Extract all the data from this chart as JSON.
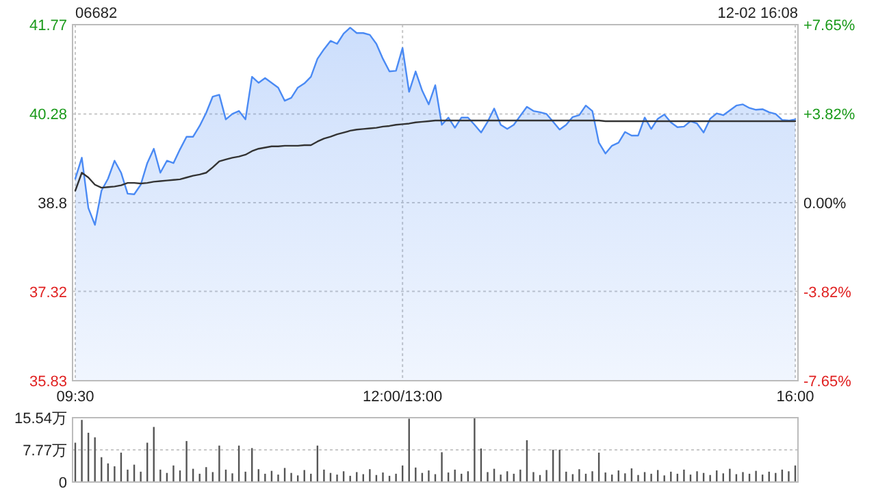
{
  "chart_data": [
    {
      "type": "line",
      "title": "06682",
      "annotations": [
        "12-02 16:08"
      ],
      "grid": true,
      "categories": [
        "09:30",
        null,
        null,
        null,
        null,
        null,
        null,
        null,
        null,
        null,
        null,
        null,
        null,
        null,
        null,
        null,
        null,
        null,
        null,
        null,
        null,
        null,
        null,
        null,
        null,
        null,
        null,
        null,
        null,
        null,
        null,
        null,
        null,
        null,
        null,
        null,
        null,
        null,
        null,
        null,
        null,
        null,
        null,
        null,
        null,
        null,
        null,
        null,
        null,
        null,
        "12:00/13:00",
        null,
        null,
        null,
        null,
        null,
        null,
        null,
        null,
        null,
        null,
        null,
        null,
        null,
        null,
        null,
        null,
        null,
        null,
        null,
        null,
        null,
        null,
        null,
        null,
        null,
        null,
        null,
        null,
        null,
        null,
        null,
        null,
        null,
        null,
        null,
        null,
        null,
        null,
        null,
        null,
        null,
        null,
        null,
        null,
        null,
        null,
        null,
        null,
        null,
        null,
        null,
        null,
        null,
        null,
        null,
        null,
        null,
        null,
        null,
        "16:00"
      ],
      "ylim": [
        35.83,
        41.77
      ],
      "yticks": [
        35.83,
        37.32,
        38.8,
        40.28,
        41.77
      ],
      "y2lim": [
        -7.65,
        7.65
      ],
      "y2ticks": [
        {
          "value": -7.65,
          "label": "-7.65%"
        },
        {
          "value": -3.82,
          "label": "-3.82%"
        },
        {
          "value": 0,
          "label": "0.00%"
        },
        {
          "value": 3.82,
          "label": "+3.82%"
        },
        {
          "value": 7.65,
          "label": "+7.65%"
        }
      ],
      "series": [
        {
          "type": "area",
          "color": "#4a8af4",
          "values": [
            39.2,
            39.55,
            38.71,
            38.43,
            39.0,
            39.2,
            39.5,
            39.3,
            38.95,
            38.94,
            39.1,
            39.46,
            39.7,
            39.3,
            39.5,
            39.46,
            39.69,
            39.9,
            39.9,
            40.08,
            40.3,
            40.57,
            40.6,
            40.19,
            40.28,
            40.33,
            40.19,
            40.9,
            40.8,
            40.88,
            40.8,
            40.72,
            40.5,
            40.55,
            40.72,
            40.79,
            40.9,
            41.2,
            41.36,
            41.5,
            41.45,
            41.62,
            41.72,
            41.63,
            41.63,
            41.6,
            41.45,
            41.2,
            40.99,
            41.0,
            41.38,
            40.65,
            40.99,
            40.67,
            40.44,
            40.76,
            40.1,
            40.22,
            40.05,
            40.22,
            40.22,
            40.1,
            39.97,
            40.15,
            40.37,
            40.1,
            40.03,
            40.1,
            40.25,
            40.4,
            40.33,
            40.31,
            40.28,
            40.15,
            40.02,
            40.1,
            40.23,
            40.26,
            40.42,
            40.33,
            39.8,
            39.62,
            39.75,
            39.8,
            39.98,
            39.92,
            39.92,
            40.22,
            40.03,
            40.2,
            40.27,
            40.14,
            40.06,
            40.07,
            40.16,
            40.12,
            39.97,
            40.2,
            40.29,
            40.26,
            40.34,
            40.42,
            40.44,
            40.38,
            40.35,
            40.36,
            40.31,
            40.28,
            40.18,
            40.17,
            40.19
          ]
        },
        {
          "type": "line",
          "color": "#333333",
          "values": [
            39.0,
            39.3,
            39.22,
            39.1,
            39.05,
            39.06,
            39.07,
            39.09,
            39.13,
            39.13,
            39.12,
            39.13,
            39.15,
            39.16,
            39.17,
            39.18,
            39.19,
            39.22,
            39.25,
            39.27,
            39.3,
            39.39,
            39.49,
            39.52,
            39.55,
            39.57,
            39.6,
            39.66,
            39.7,
            39.72,
            39.74,
            39.74,
            39.75,
            39.75,
            39.75,
            39.76,
            39.76,
            39.82,
            39.87,
            39.9,
            39.94,
            39.97,
            40.0,
            40.02,
            40.03,
            40.04,
            40.05,
            40.07,
            40.08,
            40.1,
            40.11,
            40.12,
            40.14,
            40.15,
            40.16,
            40.17,
            40.17,
            40.17,
            40.17,
            40.17,
            40.17,
            40.17,
            40.17,
            40.17,
            40.17,
            40.17,
            40.17,
            40.17,
            40.17,
            40.17,
            40.17,
            40.17,
            40.17,
            40.17,
            40.17,
            40.17,
            40.17,
            40.17,
            40.17,
            40.17,
            40.17,
            40.16,
            40.16,
            40.16,
            40.16,
            40.16,
            40.16,
            40.16,
            40.16,
            40.16,
            40.16,
            40.16,
            40.16,
            40.16,
            40.16,
            40.16,
            40.16,
            40.16,
            40.16,
            40.16,
            40.16,
            40.16,
            40.16,
            40.16,
            40.16,
            40.16,
            40.16,
            40.16,
            40.16,
            40.16,
            40.16
          ]
        }
      ]
    },
    {
      "type": "bar",
      "grid": "y",
      "tick_labels": "y",
      "categories": [
        null,
        null,
        null,
        null,
        null,
        null,
        null,
        null,
        null,
        null,
        null,
        null,
        null,
        null,
        null,
        null,
        null,
        null,
        null,
        null,
        null,
        null,
        null,
        null,
        null,
        null,
        null,
        null,
        null,
        null,
        null,
        null,
        null,
        null,
        null,
        null,
        null,
        null,
        null,
        null,
        null,
        null,
        null,
        null,
        null,
        null,
        null,
        null,
        null,
        null,
        null,
        null,
        null,
        null,
        null,
        null,
        null,
        null,
        null,
        null,
        null,
        null,
        null,
        null,
        null,
        null,
        null,
        null,
        null,
        null,
        null,
        null,
        null,
        null,
        null,
        null,
        null,
        null,
        null,
        null,
        null,
        null,
        null,
        null,
        null,
        null,
        null,
        null,
        null,
        null,
        null,
        null,
        null,
        null,
        null,
        null,
        null,
        null,
        null,
        null,
        null,
        null,
        null,
        null,
        null,
        null,
        null,
        null,
        null,
        null,
        null
      ],
      "ylim": [
        0,
        15.54
      ],
      "yticks": [
        {
          "value": 0,
          "label": "0"
        },
        {
          "value": 7.77,
          "label": "7.77万"
        },
        {
          "value": 15.54,
          "label": "15.54万"
        }
      ],
      "series": [
        {
          "color": "#555555",
          "values": [
            9.5,
            15.0,
            11.9,
            10.8,
            6.0,
            4.5,
            3.8,
            7.1,
            3.0,
            4.2,
            2.5,
            9.5,
            13.3,
            3.0,
            2.2,
            4.0,
            2.8,
            9.9,
            3.2,
            2.0,
            3.6,
            2.4,
            8.8,
            3.0,
            2.1,
            8.8,
            2.5,
            8.2,
            3.1,
            2.0,
            2.7,
            1.8,
            3.4,
            2.2,
            1.6,
            2.9,
            2.0,
            8.8,
            3.0,
            2.2,
            1.8,
            2.6,
            1.5,
            2.4,
            1.9,
            3.1,
            1.7,
            2.3,
            1.5,
            2.0,
            4.0,
            15.3,
            3.5,
            2.2,
            2.8,
            1.9,
            7.2,
            2.3,
            3.0,
            2.0,
            2.6,
            15.5,
            8.1,
            2.4,
            3.2,
            1.8,
            2.6,
            2.0,
            3.0,
            10.1,
            2.4,
            1.7,
            2.9,
            7.8,
            7.8,
            2.5,
            1.9,
            3.1,
            2.0,
            2.6,
            7.1,
            2.3,
            1.8,
            2.8,
            2.1,
            3.3,
            1.7,
            2.4,
            2.0,
            2.9,
            1.6,
            2.5,
            2.0,
            3.0,
            1.8,
            2.6,
            2.2,
            1.7,
            2.8,
            2.1,
            3.2,
            1.9,
            2.4,
            2.0,
            2.7,
            1.8,
            2.5,
            2.2,
            3.0,
            2.6,
            4.0
          ]
        }
      ]
    }
  ]
}
